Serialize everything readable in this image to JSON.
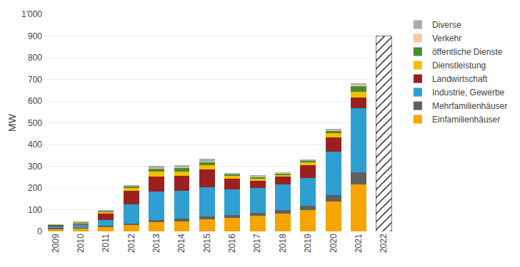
{
  "chart_data": {
    "type": "bar",
    "stacked": true,
    "ylabel": "MW",
    "categories": [
      "2009",
      "2010",
      "2011",
      "2012",
      "2013",
      "2014",
      "2015",
      "2016",
      "2017",
      "2018",
      "2019",
      "2020",
      "2021",
      "2022"
    ],
    "series": [
      {
        "name": "Einfamilienhäuser",
        "color": "#F5A400",
        "values": [
          12,
          14,
          22,
          28,
          42,
          47,
          57,
          63,
          72,
          82,
          97,
          138,
          218,
          0
        ]
      },
      {
        "name": "Mehrfamilienhäuser",
        "color": "#606060",
        "values": [
          3,
          4,
          5,
          8,
          10,
          12,
          12,
          12,
          13,
          15,
          20,
          30,
          55,
          0
        ]
      },
      {
        "name": "Industrie, Gewerbe",
        "color": "#2E9FD0",
        "values": [
          8,
          10,
          27,
          88,
          130,
          128,
          133,
          120,
          116,
          118,
          130,
          200,
          295,
          0
        ]
      },
      {
        "name": "Landwirtschaft",
        "color": "#9B2020",
        "values": [
          4,
          7,
          27,
          62,
          72,
          70,
          82,
          48,
          33,
          38,
          58,
          65,
          48,
          0
        ]
      },
      {
        "name": "Dienstleistung",
        "color": "#F0C000",
        "values": [
          2,
          3,
          8,
          15,
          20,
          20,
          20,
          12,
          10,
          8,
          12,
          18,
          28,
          0
        ]
      },
      {
        "name": "öffentliche Dienste",
        "color": "#4A8A30",
        "values": [
          1,
          2,
          5,
          7,
          15,
          15,
          15,
          8,
          8,
          6,
          8,
          12,
          25,
          0
        ]
      },
      {
        "name": "Verkehr",
        "color": "#F5C8A0",
        "values": [
          0,
          0,
          0,
          0,
          2,
          2,
          2,
          2,
          2,
          2,
          2,
          3,
          5,
          0
        ]
      },
      {
        "name": "Diverse",
        "color": "#AAAAAA",
        "values": [
          2,
          3,
          6,
          5,
          12,
          10,
          12,
          5,
          3,
          3,
          4,
          6,
          8,
          0
        ]
      },
      {
        "color": "#FFFFFF",
        "marker": "hatch",
        "values": [
          null,
          null,
          null,
          null,
          null,
          null,
          null,
          null,
          null,
          null,
          null,
          null,
          null,
          900
        ]
      }
    ],
    "ylim": [
      0,
      1000
    ],
    "yticks": [
      0,
      100,
      200,
      300,
      400,
      500,
      600,
      700,
      800,
      900,
      {
        "value": 1000,
        "label": "1'000"
      }
    ],
    "grid": true,
    "legend": "right"
  }
}
